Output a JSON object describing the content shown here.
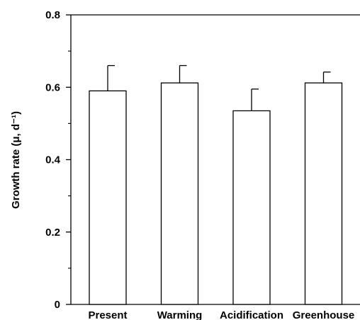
{
  "chart_data": {
    "type": "bar",
    "categories": [
      "Present",
      "Warming",
      "Acidification",
      "Greenhouse"
    ],
    "values": [
      0.59,
      0.612,
      0.535,
      0.612
    ],
    "error_upper": [
      0.07,
      0.048,
      0.06,
      0.03
    ],
    "ylabel": "Growth rate (μ, d⁻¹)",
    "ylim": [
      0,
      0.8
    ],
    "major_ticks": [
      0,
      0.2,
      0.4,
      0.6,
      0.8
    ],
    "minor_ticks": [
      0.1,
      0.3,
      0.5,
      0.7
    ],
    "tick_labels": [
      "0",
      "0.2",
      "0.4",
      "0.6",
      "0.8"
    ],
    "bar_fill": "#ffffff",
    "bar_stroke": "#000000",
    "grid": false,
    "legend": "none"
  }
}
